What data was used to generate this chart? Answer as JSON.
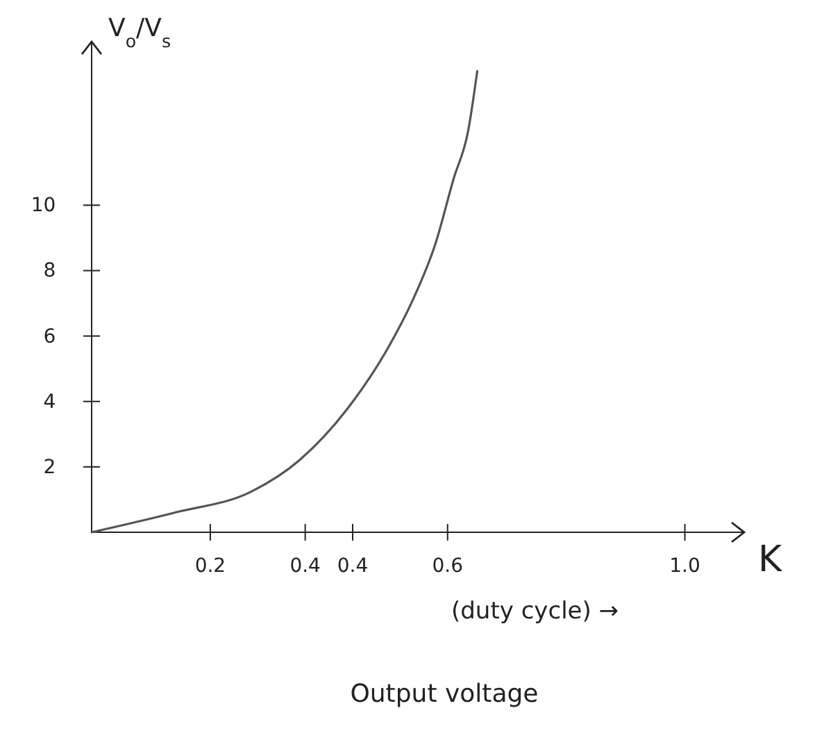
{
  "chart_data": {
    "type": "line",
    "title": "Output voltage",
    "xlabel": "K",
    "ylabel": "V$_{o}$/V$_{s}$",
    "annotations": [
      "(duty cycle) →"
    ],
    "x": [
      0,
      0.14,
      0.27,
      0.35,
      0.43,
      0.5,
      0.54,
      0.58,
      0.61,
      0.635,
      0.65
    ],
    "series": [
      {
        "color": "#555555",
        "values": [
          0,
          0.6,
          1.25,
          2.2,
          3.75,
          5.65,
          7.05,
          8.85,
          10.8,
          12.3,
          14.1
        ]
      }
    ],
    "xlim": [
      0,
      1.1
    ],
    "ylim": [
      0,
      15
    ],
    "xticks": [
      {
        "value": 0.2,
        "label": "0.2"
      },
      {
        "value": 0.36,
        "label": "0.4"
      },
      {
        "value": 0.44,
        "label": "0.4"
      },
      {
        "value": 0.6,
        "label": "0.6"
      },
      {
        "value": 1.0,
        "label": "1.0"
      }
    ],
    "yticks": [
      2,
      4,
      6,
      8,
      10
    ],
    "grid": false,
    "marker": "none",
    "line_style": "solid"
  }
}
